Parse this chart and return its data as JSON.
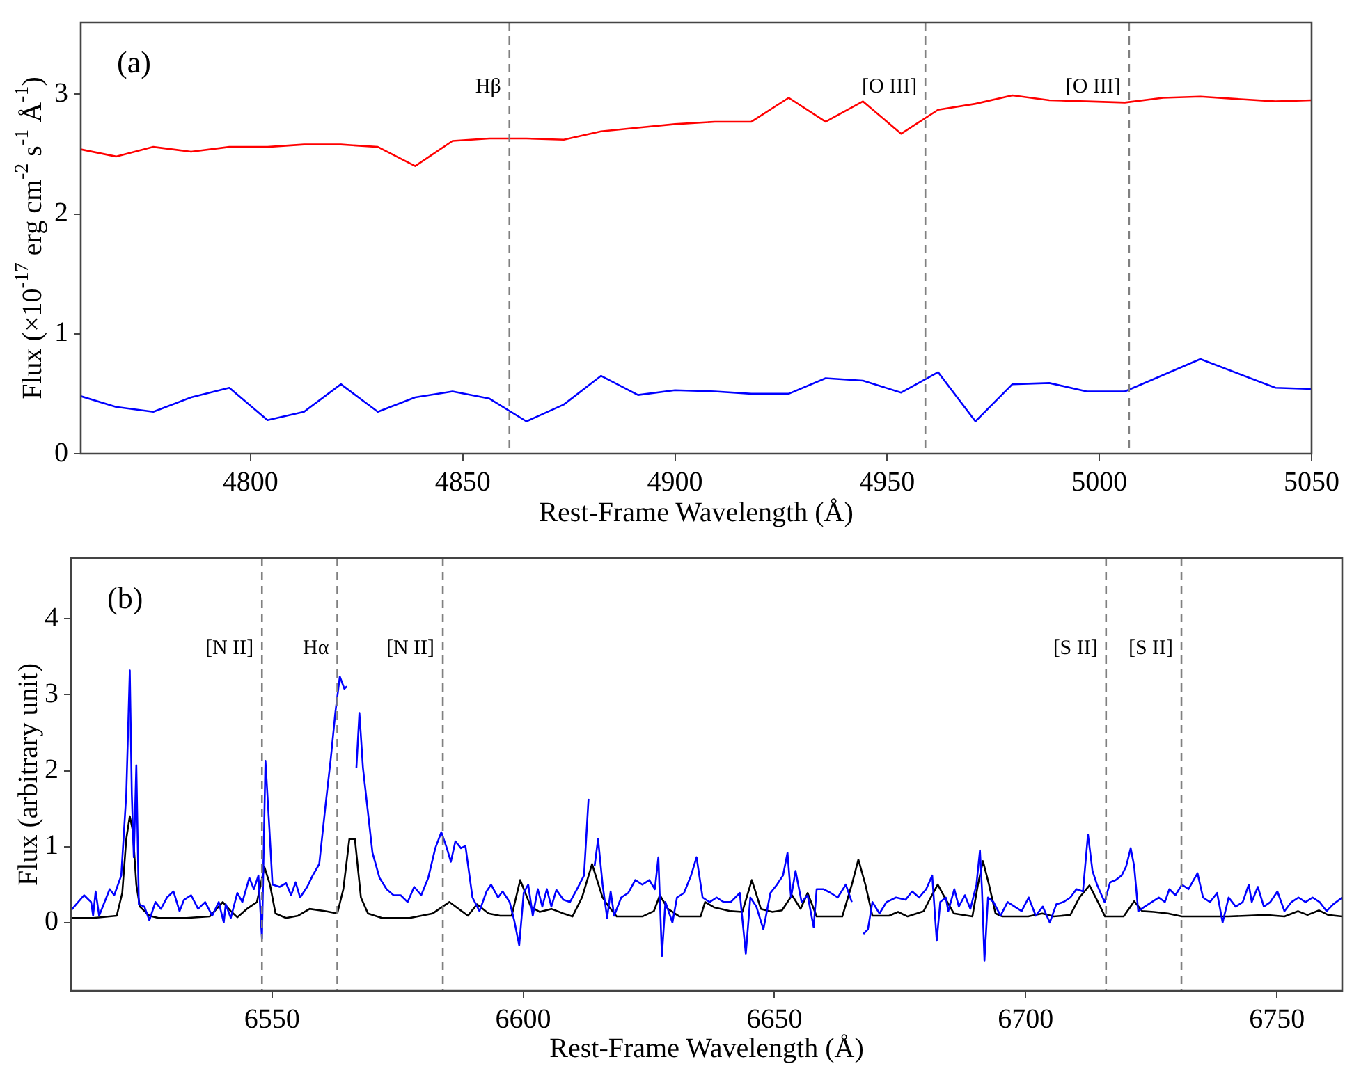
{
  "chart_data": [
    {
      "type": "line",
      "xlabel": "Rest-Frame Wavelength (Å)",
      "ylabel": "Flux (×10$^{-17}$ erg cm$^{-2}$ s$^{-1}$ Å$^{-1}$)",
      "annotations": [
        "(a)"
      ],
      "xlim": [
        4760,
        5050
      ],
      "ylim": [
        0,
        3.6
      ],
      "xticks": [
        4800,
        4850,
        4900,
        4950,
        5000,
        5050
      ],
      "yticks": [
        0,
        1,
        2,
        3
      ],
      "grid": false,
      "legend": false,
      "marker": "none",
      "line_style": "solid",
      "series": [
        {
          "color": "#ff0000",
          "x": [
            4760,
            4768.3,
            4777.1,
            4786,
            4795,
            4804,
            4812.6,
            4821.3,
            4830,
            4838.8,
            4847.6,
            4856.3,
            4865,
            4873.8,
            4882.6,
            4891.3,
            4900,
            4909.4,
            4918,
            4926.8,
            4935.5,
            4944.3,
            4953.3,
            4962,
            4970.8,
            4979.5,
            4988.2,
            4997,
            5006,
            5015,
            5023.8,
            5041.5,
            5050
          ],
          "values": [
            2.54,
            2.48,
            2.56,
            2.52,
            2.56,
            2.56,
            2.58,
            2.58,
            2.56,
            2.4,
            2.61,
            2.63,
            2.63,
            2.62,
            2.69,
            2.72,
            2.75,
            2.77,
            2.77,
            2.97,
            2.77,
            2.94,
            2.67,
            2.87,
            2.92,
            2.99,
            2.95,
            2.94,
            2.93,
            2.97,
            2.98,
            2.94,
            2.95
          ]
        },
        {
          "color": "#0000ff",
          "x": [
            4760,
            4768.3,
            4777.1,
            4786,
            4795,
            4804,
            4812.6,
            4821.3,
            4830,
            4838.8,
            4847.6,
            4856.3,
            4865,
            4873.8,
            4882.6,
            4891.3,
            4900,
            4909.4,
            4918,
            4926.8,
            4935.5,
            4944.3,
            4953.3,
            4962,
            4970.8,
            4979.5,
            4988.2,
            4997,
            5006,
            5023.8,
            5041.5,
            5050
          ],
          "values": [
            0.48,
            0.39,
            0.35,
            0.47,
            0.55,
            0.28,
            0.35,
            0.58,
            0.35,
            0.47,
            0.52,
            0.46,
            0.27,
            0.41,
            0.65,
            0.49,
            0.53,
            0.52,
            0.5,
            0.5,
            0.63,
            0.61,
            0.51,
            0.68,
            0.27,
            0.58,
            0.59,
            0.52,
            0.52,
            0.79,
            0.55,
            0.54
          ]
        }
      ],
      "ref_lines": [
        {
          "axis": "x",
          "value": 4861,
          "label": "Hβ",
          "color": "#808080",
          "line_style": "dashed"
        },
        {
          "axis": "x",
          "value": 4959,
          "label": "[O III]",
          "color": "#808080",
          "line_style": "dashed"
        },
        {
          "axis": "x",
          "value": 5007,
          "label": "[O III]",
          "color": "#808080",
          "line_style": "dashed"
        }
      ]
    },
    {
      "type": "line",
      "xlabel": "Rest-Frame Wavelength (Å)",
      "ylabel": "Flux (arbitrary unit)",
      "annotations": [
        "(b)"
      ],
      "xlim": [
        6510,
        6763
      ],
      "ylim": [
        -0.9,
        4.8
      ],
      "xticks": [
        6550,
        6600,
        6650,
        6700,
        6750
      ],
      "yticks": [
        0,
        1,
        2,
        3,
        4
      ],
      "grid": false,
      "legend": false,
      "marker": "none",
      "line_style": "solid",
      "series": [
        {
          "color": "#0000ff",
          "x": [
            6510,
            6512.6,
            6514,
            6514.4,
            6514.9,
            6515.6,
            6517.7,
            6518.6,
            6520,
            6521,
            6521.7,
            6522.1,
            6522.5,
            6523,
            6523.5,
            6524.6,
            6525.6,
            6526.8,
            6527.9,
            6529.1,
            6530.4,
            6531.6,
            6532.5,
            6533.9,
            6535.3,
            6536.7,
            6538.1,
            6539.4,
            6540.4,
            6540.8,
            6541.8,
            6543.1,
            6544.1,
            6545.5,
            6546.4,
            6547.3,
            6548,
            6548.7,
            6549.4,
            6550.1,
            6551.5,
            6552.8,
            6553.8,
            6554.7,
            6555.6,
            6557,
            6558.1,
            6559.4,
            6560.7,
            6561.7,
            6562.6,
            6563.5,
            6564.4,
            6564.9,
            6565.6,
            6566.1,
            6566.8,
            6567.4,
            6568.1,
            6569.1,
            6570,
            6571.4,
            6572.8,
            6574.2,
            6575.6,
            6577,
            6578.3,
            6579.7,
            6581.1,
            6582.5,
            6583.7,
            6584.8,
            6585.6,
            6586.5,
            6587.6,
            6588.5,
            6589.9,
            6591.3,
            6592.7,
            6593.6,
            6595,
            6595.9,
            6597.3,
            6598.2,
            6599.2,
            6600.1,
            6601,
            6601.9,
            6602.9,
            6603.8,
            6604.7,
            6605.6,
            6606.6,
            6608,
            6609.3,
            6610.7,
            6612.1,
            6613,
            6613.7,
            6614.2,
            6614.9,
            6615.8,
            6616.7,
            6617.4,
            6618.1,
            6619.5,
            6620.9,
            6622.3,
            6623.7,
            6625.1,
            6626.2,
            6626.9,
            6627.6,
            6628.3,
            6629.7,
            6630.6,
            6632,
            6633.4,
            6634.5,
            6635.7,
            6637.1,
            6638.5,
            6639.9,
            6641.3,
            6643.1,
            6644.3,
            6645.2,
            6646.4,
            6647.8,
            6649.2,
            6650.5,
            6651.7,
            6652.6,
            6653.3,
            6654.2,
            6655.4,
            6656.6,
            6657.8,
            6658.4,
            6659.8,
            6661.2,
            6662.6,
            6664.2,
            6665.4,
            6666.1,
            6666.7,
            6667.7,
            6668.6,
            6669.5,
            6670.9,
            6672.3,
            6674.2,
            6676.1,
            6677.4,
            6678.8,
            6680.2,
            6681.4,
            6682.3,
            6683,
            6684.1,
            6684.6,
            6685.8,
            6686.7,
            6687.9,
            6689,
            6690.2,
            6690.9,
            6691.3,
            6691.8,
            6692.5,
            6693.6,
            6695,
            6696.4,
            6697.8,
            6699.2,
            6700.6,
            6702,
            6703.4,
            6704.8,
            6706.1,
            6707.5,
            6708.9,
            6710.1,
            6711.4,
            6712.4,
            6713.3,
            6714.2,
            6715.7,
            6716.8,
            6717.9,
            6719.1,
            6720,
            6720.9,
            6721.6,
            6722.4,
            6723.7,
            6725.1,
            6726.5,
            6727.7,
            6728.6,
            6729.8,
            6731.1,
            6732.4,
            6734.2,
            6735.3,
            6736.7,
            6738.1,
            6739.2,
            6740.4,
            6741.8,
            6743.2,
            6744.4,
            6745,
            6746.2,
            6747.4,
            6748.7,
            6750.1,
            6751.5,
            6752.9,
            6754.3,
            6755.7,
            6757.1,
            6758.5,
            6759.9,
            6761.2,
            6763
          ],
          "values": [
            0.16,
            0.36,
            0.27,
            0.09,
            0.41,
            0.09,
            0.44,
            0.36,
            0.62,
            1.69,
            3.32,
            1.69,
            0.86,
            2.07,
            0.24,
            0.21,
            0.03,
            0.27,
            0.18,
            0.33,
            0.41,
            0.15,
            0.3,
            0.36,
            0.18,
            0.27,
            0.09,
            0.27,
            0,
            0.24,
            0.06,
            0.39,
            0.27,
            0.59,
            0.44,
            0.62,
            -0.21,
            2.13,
            1.33,
            0.5,
            0.47,
            0.52,
            0.36,
            0.53,
            0.33,
            0.47,
            0.62,
            0.77,
            1.57,
            2.16,
            2.76,
            3.24,
            3.08,
            3.11,
            null,
            null,
            2.04,
            2.76,
            2.04,
            1.45,
            0.92,
            0.59,
            0.44,
            0.36,
            0.36,
            0.27,
            0.47,
            0.36,
            0.59,
            0.98,
            1.19,
            0.98,
            0.8,
            1.07,
            0.98,
            1.01,
            0.33,
            0.15,
            0.41,
            0.5,
            0.33,
            0.41,
            0.27,
            0.03,
            -0.3,
            0.39,
            0.5,
            0.09,
            0.44,
            0.21,
            0.44,
            0.21,
            0.43,
            0.3,
            0.27,
            0.44,
            0.62,
            1.63,
            null,
            0.74,
            1.1,
            0.5,
            0.06,
            0.41,
            0.09,
            0.33,
            0.39,
            0.56,
            0.5,
            0.56,
            0.44,
            0.86,
            -0.44,
            0.27,
            0,
            0.33,
            0.39,
            0.62,
            0.86,
            0.33,
            0.27,
            0.33,
            0.27,
            0.27,
            0.39,
            -0.41,
            0.33,
            0.21,
            -0.09,
            0.39,
            0.5,
            0.62,
            0.92,
            0.33,
            0.68,
            0.27,
            0.36,
            -0.06,
            0.44,
            0.44,
            0.39,
            0.33,
            0.5,
            0.27,
            null,
            null,
            -0.15,
            -0.09,
            0.27,
            0.12,
            0.27,
            0.33,
            0.3,
            0.41,
            0.33,
            0.44,
            0.62,
            -0.24,
            0.27,
            0.33,
            0.15,
            0.44,
            0.21,
            0.36,
            0.18,
            0.5,
            0.95,
            0.44,
            -0.5,
            0.33,
            0.27,
            0.09,
            0.27,
            0.21,
            0.15,
            0.33,
            0.09,
            0.21,
            0,
            0.24,
            0.27,
            0.33,
            0.44,
            0.41,
            1.16,
            0.68,
            0.5,
            0.27,
            0.53,
            0.56,
            0.62,
            0.74,
            0.98,
            0.74,
            0.15,
            0.21,
            0.27,
            0.33,
            0.27,
            0.44,
            0.36,
            0.5,
            0.44,
            0.65,
            0.33,
            0.27,
            0.39,
            0,
            0.33,
            0.21,
            0.27,
            0.5,
            0.27,
            0.47,
            0.21,
            0.27,
            0.41,
            0.15,
            0.27,
            0.33,
            0.27,
            0.33,
            0.27,
            0.15,
            0.24,
            0.33
          ]
        },
        {
          "color": "#000000",
          "x": [
            6510,
            6514.4,
            6519.1,
            6520.2,
            6521,
            6521.7,
            6522.3,
            6523,
            6523.7,
            6525.6,
            6527.4,
            6533,
            6537.6,
            6540.2,
            6541.8,
            6543.1,
            6545,
            6547,
            6548.5,
            6549.6,
            6550.7,
            6552.8,
            6555.2,
            6557.5,
            6560.7,
            6563,
            6564.2,
            6565.4,
            6566.5,
            6567.7,
            6569.1,
            6571.9,
            6577.4,
            6582,
            6585.3,
            6589,
            6590.8,
            6593.1,
            6595.4,
            6597.7,
            6599.4,
            6601.5,
            6603.3,
            6605.6,
            6608,
            6609.8,
            6611.7,
            6613.7,
            6615.8,
            6616.7,
            6618.6,
            6623.7,
            6626,
            6627.2,
            6628.8,
            6631.1,
            6635.3,
            6636.2,
            6638,
            6641.3,
            6643.6,
            6645.5,
            6647.3,
            6649.6,
            6651.5,
            6653.5,
            6655.2,
            6656.6,
            6658.4,
            6663.5,
            6665.4,
            6666.7,
            6668.1,
            6669.5,
            6672.8,
            6674.6,
            6676.5,
            6679.7,
            6681.1,
            6682.5,
            6683.9,
            6685.7,
            6689.4,
            6690.5,
            6691.5,
            6692.7,
            6694,
            6695.4,
            6700.5,
            6703.3,
            6705.6,
            6708.9,
            6710.7,
            6712.7,
            6714.4,
            6715.8,
            6719.5,
            6721.6,
            6723.2,
            6725.5,
            6728.3,
            6731.1,
            6740.3,
            6747.8,
            6751.5,
            6754.2,
            6756.1,
            6758.4,
            6760.2,
            6763
          ],
          "values": [
            0.06,
            0.06,
            0.09,
            0.39,
            1.1,
            1.4,
            1.21,
            0.5,
            0.21,
            0.09,
            0.06,
            0.06,
            0.08,
            0.27,
            0.15,
            0.07,
            0.18,
            0.27,
            0.73,
            0.5,
            0.12,
            0.06,
            0.09,
            0.18,
            0.15,
            0.12,
            0.44,
            1.1,
            1.1,
            0.33,
            0.12,
            0.06,
            0.06,
            0.12,
            0.27,
            0.09,
            0.24,
            0.12,
            0.09,
            0.09,
            0.56,
            0.21,
            0.14,
            0.18,
            0.12,
            0.08,
            0.33,
            0.77,
            0.33,
            0.24,
            0.08,
            0.08,
            0.15,
            0.36,
            0.18,
            0.08,
            0.08,
            0.27,
            0.2,
            0.15,
            0.14,
            0.56,
            0.18,
            0.14,
            0.16,
            0.36,
            0.18,
            0.39,
            0.08,
            0.08,
            0.5,
            0.83,
            0.5,
            0.09,
            0.09,
            0.14,
            0.08,
            0.15,
            0.33,
            0.5,
            0.33,
            0.12,
            0.08,
            0.5,
            0.81,
            0.5,
            0.12,
            0.08,
            0.08,
            0.12,
            0.08,
            0.1,
            0.33,
            0.49,
            0.27,
            0.08,
            0.08,
            0.28,
            0.15,
            0.14,
            0.12,
            0.08,
            0.08,
            0.1,
            0.08,
            0.15,
            0.1,
            0.16,
            0.1,
            0.08
          ]
        }
      ],
      "ref_lines": [
        {
          "axis": "x",
          "value": 6548,
          "label": "[N II]",
          "color": "#808080",
          "line_style": "dashed"
        },
        {
          "axis": "x",
          "value": 6563,
          "label": "Hα",
          "color": "#808080",
          "line_style": "dashed"
        },
        {
          "axis": "x",
          "value": 6584,
          "label": "[N II]",
          "color": "#808080",
          "line_style": "dashed"
        },
        {
          "axis": "x",
          "value": 6716,
          "label": "[S II]",
          "color": "#808080",
          "line_style": "dashed"
        },
        {
          "axis": "x",
          "value": 6731,
          "label": "[S II]",
          "color": "#808080",
          "line_style": "dashed"
        }
      ]
    }
  ]
}
